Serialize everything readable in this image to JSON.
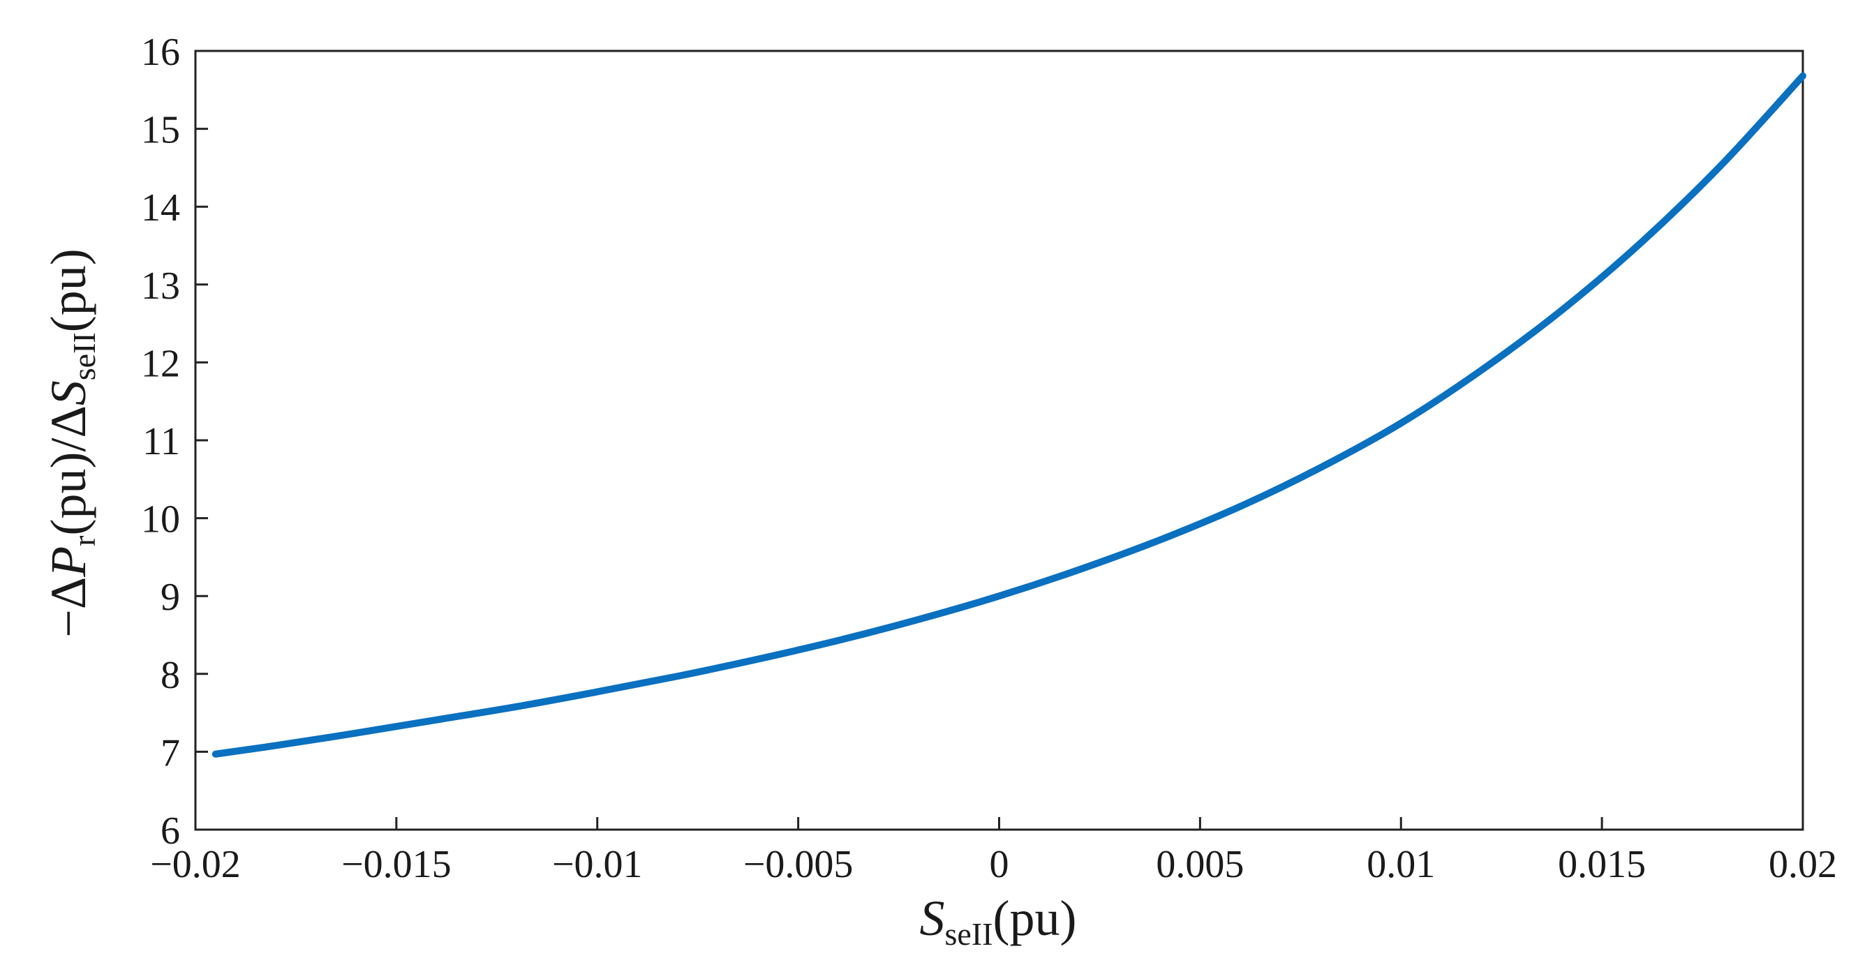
{
  "chart_data": {
    "type": "line",
    "title": "",
    "xlabel": {
      "main": "S",
      "sub": "seII",
      "unit": "(pu)"
    },
    "ylabel": {
      "prefix": "−Δ",
      "main1": "P",
      "sub1": "r",
      "mid": "(pu)/Δ",
      "main2": "S",
      "sub2": "seII",
      "unit": "(pu)"
    },
    "xlim": [
      -0.02,
      0.02
    ],
    "ylim": [
      6,
      16
    ],
    "xticks": [
      -0.02,
      -0.015,
      -0.01,
      -0.005,
      0,
      0.005,
      0.01,
      0.015,
      0.02
    ],
    "xtick_labels": [
      "−0.02",
      "−0.015",
      "−0.01",
      "−0.005",
      "0",
      "0.005",
      "0.01",
      "0.015",
      "0.02"
    ],
    "yticks": [
      6,
      7,
      8,
      9,
      10,
      11,
      12,
      13,
      14,
      15,
      16
    ],
    "ytick_labels": [
      "6",
      "7",
      "8",
      "9",
      "10",
      "11",
      "12",
      "13",
      "14",
      "15",
      "16"
    ],
    "grid": false,
    "legend": "none",
    "series": [
      {
        "color": "#0a70c0",
        "x": [
          -0.0195,
          -0.018,
          -0.016,
          -0.014,
          -0.012,
          -0.01,
          -0.008,
          -0.006,
          -0.004,
          -0.002,
          0,
          0.002,
          0.004,
          0.006,
          0.008,
          0.01,
          0.012,
          0.014,
          0.016,
          0.018,
          0.02
        ],
        "y": [
          6.97,
          7.08,
          7.24,
          7.41,
          7.58,
          7.77,
          7.97,
          8.19,
          8.43,
          8.7,
          9.0,
          9.34,
          9.72,
          10.15,
          10.65,
          11.22,
          11.9,
          12.67,
          13.55,
          14.55,
          15.68
        ]
      }
    ]
  }
}
